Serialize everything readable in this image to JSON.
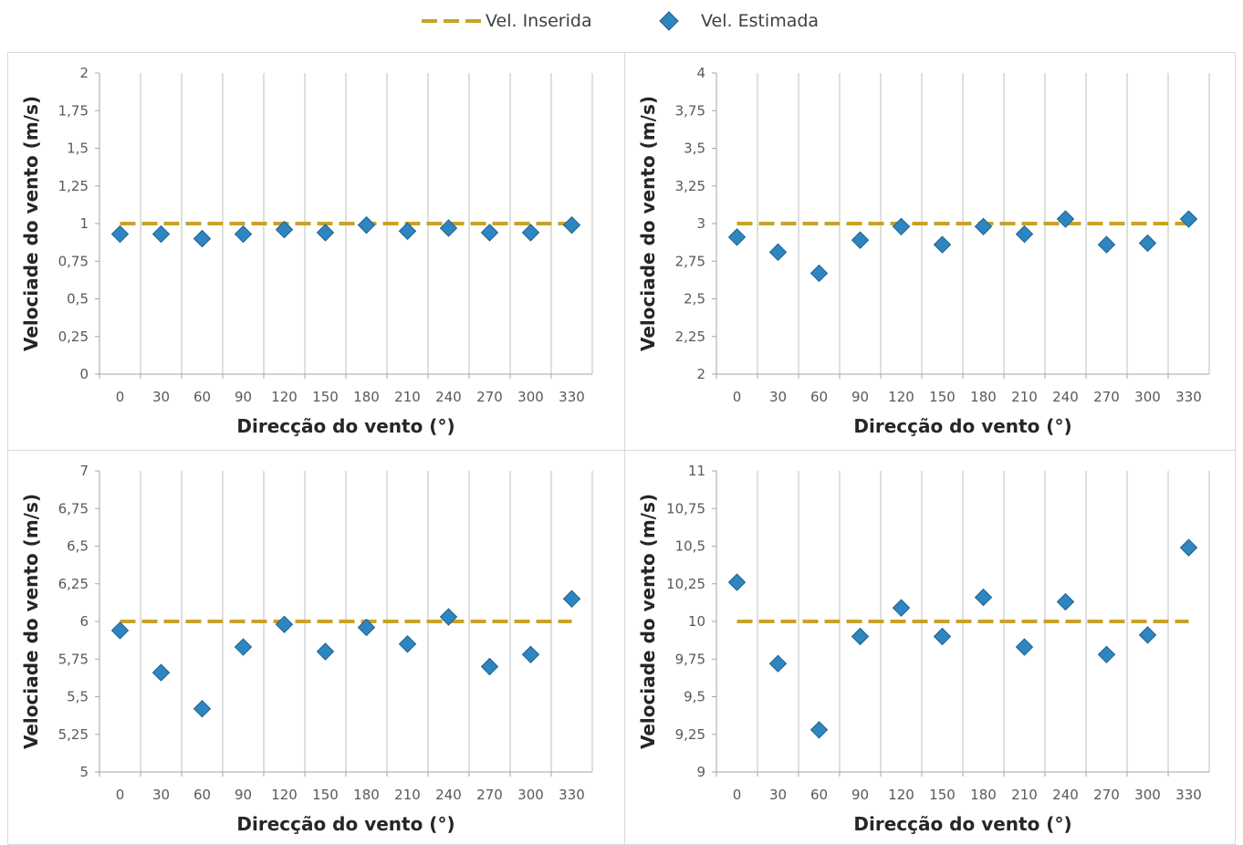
{
  "legend": {
    "inserted_label": "Vel. Inserida",
    "estimated_label": "Vel. Estimada",
    "placement": "top-center"
  },
  "colors": {
    "inserted": "#c9a227",
    "estimated": "#2e86c1",
    "estimated_edge": "#1f5f8b",
    "gridline": "#bfbfbf",
    "axis": "#a6a6a6",
    "panel_border": "#d9d9d9"
  },
  "chart_data": [
    {
      "type": "scatter",
      "xlabel": "Direcção do vento (°)",
      "ylabel": "Velociade do vento (m/s)",
      "grid": "vertical",
      "x_categories": [
        "0",
        "30",
        "60",
        "90",
        "120",
        "150",
        "180",
        "210",
        "240",
        "270",
        "300",
        "330"
      ],
      "y_ticks": [
        "0",
        "0,25",
        "0,5",
        "0,75",
        "1",
        "1,25",
        "1,5",
        "1,75",
        "2"
      ],
      "ylim": [
        0,
        2
      ],
      "series": [
        {
          "name": "Vel. Inserida",
          "style": "dashed-line",
          "values": [
            1,
            1,
            1,
            1,
            1,
            1,
            1,
            1,
            1,
            1,
            1,
            1
          ]
        },
        {
          "name": "Vel. Estimada",
          "style": "diamond-marker",
          "values": [
            0.93,
            0.93,
            0.9,
            0.93,
            0.96,
            0.94,
            0.99,
            0.95,
            0.97,
            0.94,
            0.94,
            0.99
          ]
        }
      ]
    },
    {
      "type": "scatter",
      "xlabel": "Direcção do vento (°)",
      "ylabel": "Velociade do vento (m/s)",
      "grid": "vertical",
      "x_categories": [
        "0",
        "30",
        "60",
        "90",
        "120",
        "150",
        "180",
        "210",
        "240",
        "270",
        "300",
        "330"
      ],
      "y_ticks": [
        "2",
        "2,25",
        "2,5",
        "2,75",
        "3",
        "3,25",
        "3,5",
        "3,75",
        "4"
      ],
      "ylim": [
        2,
        4
      ],
      "series": [
        {
          "name": "Vel. Inserida",
          "style": "dashed-line",
          "values": [
            3,
            3,
            3,
            3,
            3,
            3,
            3,
            3,
            3,
            3,
            3,
            3
          ]
        },
        {
          "name": "Vel. Estimada",
          "style": "diamond-marker",
          "values": [
            2.91,
            2.81,
            2.67,
            2.89,
            2.98,
            2.86,
            2.98,
            2.93,
            3.03,
            2.86,
            2.87,
            3.03
          ]
        }
      ]
    },
    {
      "type": "scatter",
      "xlabel": "Direcção do vento (°)",
      "ylabel": "Velociade do vento (m/s)",
      "grid": "vertical",
      "x_categories": [
        "0",
        "30",
        "60",
        "90",
        "120",
        "150",
        "180",
        "210",
        "240",
        "270",
        "300",
        "330"
      ],
      "y_ticks": [
        "5",
        "5,25",
        "5,5",
        "5,75",
        "6",
        "6,25",
        "6,5",
        "6,75",
        "7"
      ],
      "ylim": [
        5,
        7
      ],
      "series": [
        {
          "name": "Vel. Inserida",
          "style": "dashed-line",
          "values": [
            6,
            6,
            6,
            6,
            6,
            6,
            6,
            6,
            6,
            6,
            6,
            6
          ]
        },
        {
          "name": "Vel. Estimada",
          "style": "diamond-marker",
          "values": [
            5.94,
            5.66,
            5.42,
            5.83,
            5.98,
            5.8,
            5.96,
            5.85,
            6.03,
            5.7,
            5.78,
            6.15
          ]
        }
      ]
    },
    {
      "type": "scatter",
      "xlabel": "Direcção do vento (°)",
      "ylabel": "Velociade do vento (m/s)",
      "grid": "vertical",
      "x_categories": [
        "0",
        "30",
        "60",
        "90",
        "120",
        "150",
        "180",
        "210",
        "240",
        "270",
        "300",
        "330"
      ],
      "y_ticks": [
        "9",
        "9,25",
        "9,5",
        "9,75",
        "10",
        "10,25",
        "10,5",
        "10,75",
        "11"
      ],
      "ylim": [
        9,
        11
      ],
      "series": [
        {
          "name": "Vel. Inserida",
          "style": "dashed-line",
          "values": [
            10,
            10,
            10,
            10,
            10,
            10,
            10,
            10,
            10,
            10,
            10,
            10
          ]
        },
        {
          "name": "Vel. Estimada",
          "style": "diamond-marker",
          "values": [
            10.26,
            9.72,
            9.28,
            9.9,
            10.09,
            9.9,
            10.16,
            9.83,
            10.13,
            9.78,
            9.91,
            10.49
          ]
        }
      ]
    }
  ]
}
